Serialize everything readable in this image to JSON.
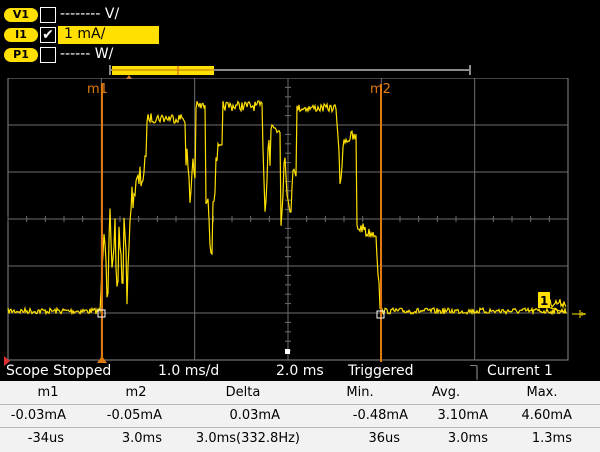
{
  "channels": [
    {
      "badge": "V1",
      "checked": "",
      "label": "-------- V/"
    },
    {
      "badge": "I1",
      "checked": "✔",
      "label": "1 mA/"
    },
    {
      "badge": "P1",
      "checked": "",
      "label": "------ W/"
    }
  ],
  "markers": {
    "m1": "m1",
    "m2": "m2"
  },
  "trace_marker": "1",
  "status": {
    "state": "Scope Stopped",
    "timebase": "1.0 ms/d",
    "offset": "2.0 ms",
    "trigger": "Triggered",
    "trigger_source": "Current 1"
  },
  "measurements": {
    "headers": [
      "m1",
      "m2",
      "Delta",
      "Min.",
      "Avg.",
      "Max."
    ],
    "row1": [
      "-0.03mA",
      "-0.05mA",
      "0.03mA",
      "-0.48mA",
      "3.10mA",
      "4.60mA"
    ],
    "row2": [
      "-34us",
      "3.0ms",
      "3.0ms(332.8Hz)",
      "36us",
      "3.0ms",
      "1.3ms"
    ]
  },
  "colors": {
    "trace": "#ffe000",
    "marker": "#e07a10",
    "grid": "#7a7a7a",
    "badge": "#ffe000"
  }
}
